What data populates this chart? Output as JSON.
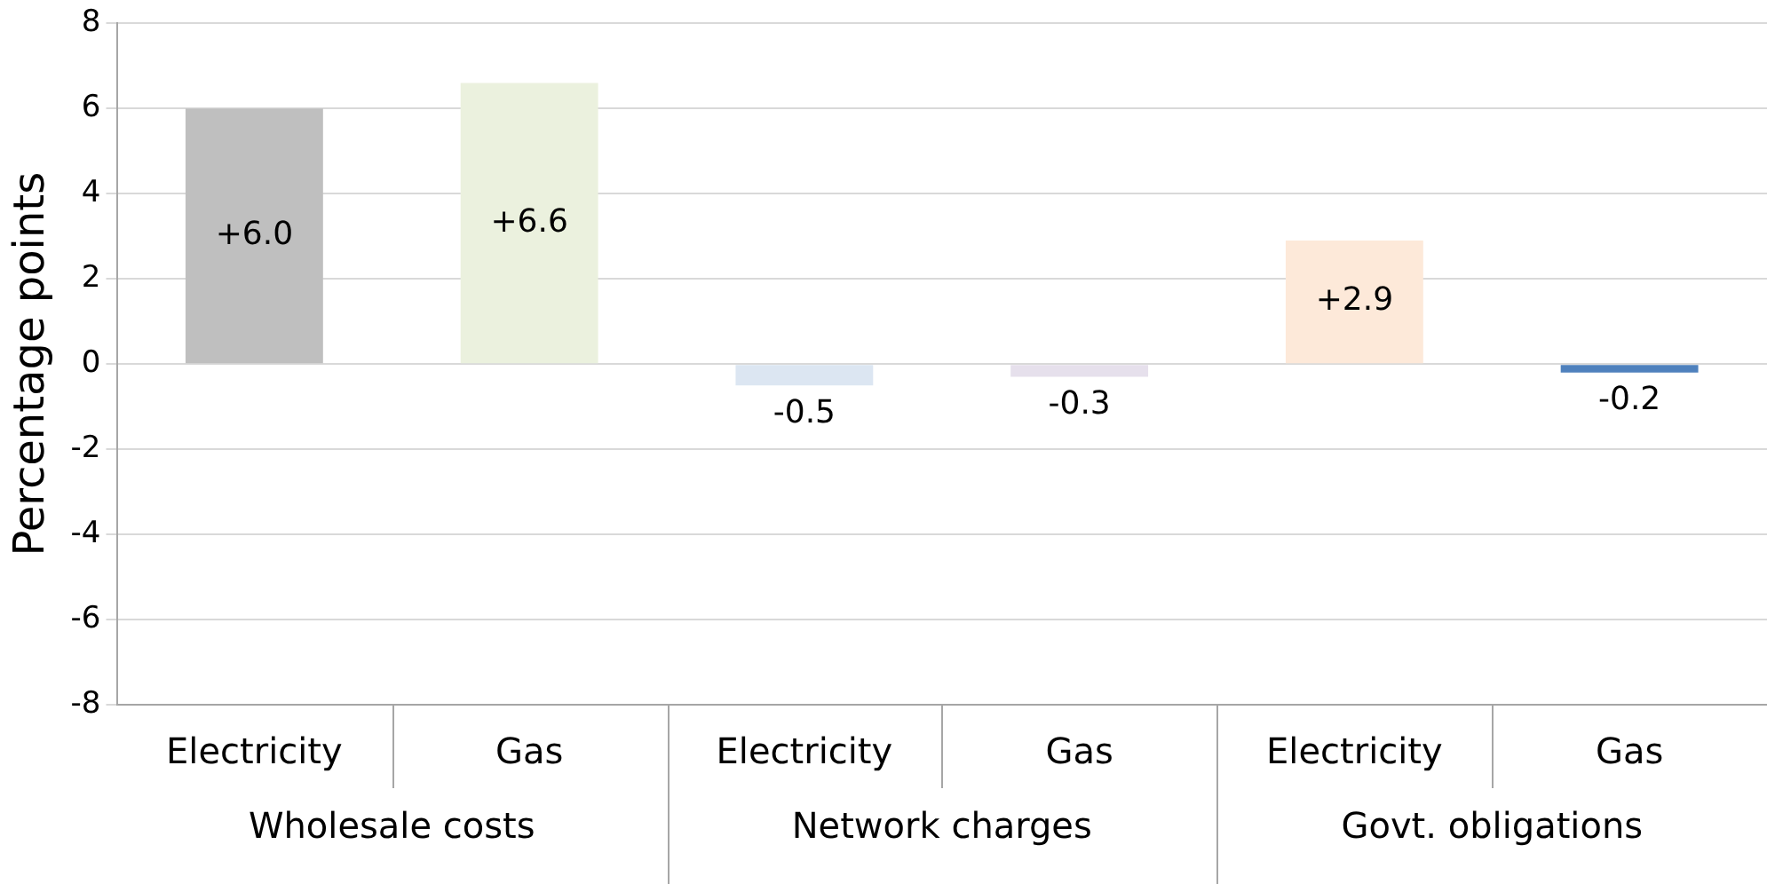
{
  "chart_data": {
    "type": "bar",
    "ylabel": "Percentage points",
    "categories": [
      "Electricity",
      "Gas",
      "Electricity",
      "Gas",
      "Electricity",
      "Gas"
    ],
    "values": [
      6.0,
      6.6,
      -0.5,
      -0.3,
      2.9,
      -0.2
    ],
    "colors": [
      "#bfbfbf",
      "#ebf1de",
      "#dce6f2",
      "#e6e0ec",
      "#fde9d9",
      "#4f81bd"
    ],
    "value_labels": [
      "+6.0",
      "+6.6",
      "-0.5",
      "-0.3",
      "+2.9",
      "-0.2"
    ],
    "ylim": [
      -8,
      8
    ],
    "yticks": [
      -8,
      -6,
      -4,
      -2,
      0,
      2,
      4,
      6,
      8
    ],
    "grid": "y",
    "legend": false,
    "annotations": [
      "Wholesale costs",
      "Network charges",
      "Govt. obligations"
    ]
  }
}
